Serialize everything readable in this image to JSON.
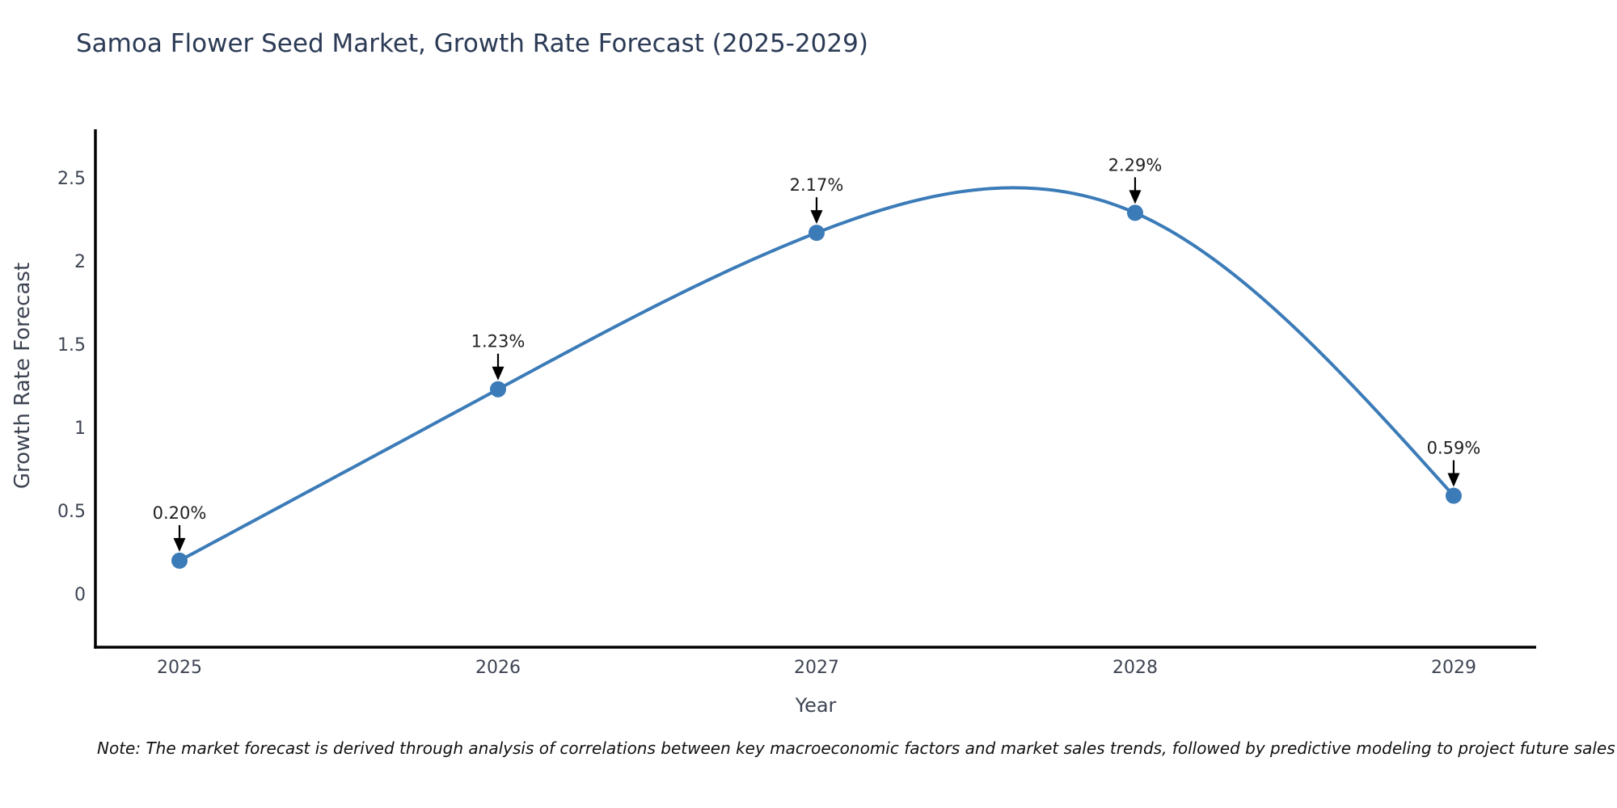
{
  "title": "Samoa Flower Seed Market, Growth Rate Forecast (2025-2029)",
  "note": "Note: The market forecast is derived through analysis of correlations between key macroeconomic factors and market sales trends, followed by predictive modeling to project future sales",
  "chart_data": {
    "type": "line",
    "title": "Samoa Flower Seed Market, Growth Rate Forecast (2025-2029)",
    "categories": [
      "2025",
      "2026",
      "2027",
      "2028",
      "2029"
    ],
    "x": [
      2025,
      2026,
      2027,
      2028,
      2029
    ],
    "values": [
      0.2,
      1.23,
      2.17,
      2.29,
      0.59
    ],
    "point_labels": [
      "0.20%",
      "1.23%",
      "2.17%",
      "2.29%",
      "0.59%"
    ],
    "xlabel": "Year",
    "ylabel": "Growth Rate Forecast",
    "yticks": [
      0,
      0.5,
      1,
      1.5,
      2,
      2.5
    ],
    "ytick_labels": [
      "0",
      "0.5",
      "1",
      "1.5",
      "2",
      "2.5"
    ],
    "xlim": [
      2024.736,
      2029.259
    ],
    "ylim": [
      -0.32,
      2.792
    ],
    "grid": false,
    "legend": "none",
    "line_smoothing": "natural-cubic-spline",
    "annotation_style": "down-arrow-to-point",
    "colors": {
      "line": "#3b7bb8",
      "marker": "#3b7bb8",
      "axis": "#000000",
      "title": "#2b3a55",
      "tick": "#3d4452",
      "axis_label": "#3d4452",
      "annotation": "#1f1f1f",
      "arrow": "#000000",
      "note": "#111111",
      "background": "#ffffff"
    }
  }
}
